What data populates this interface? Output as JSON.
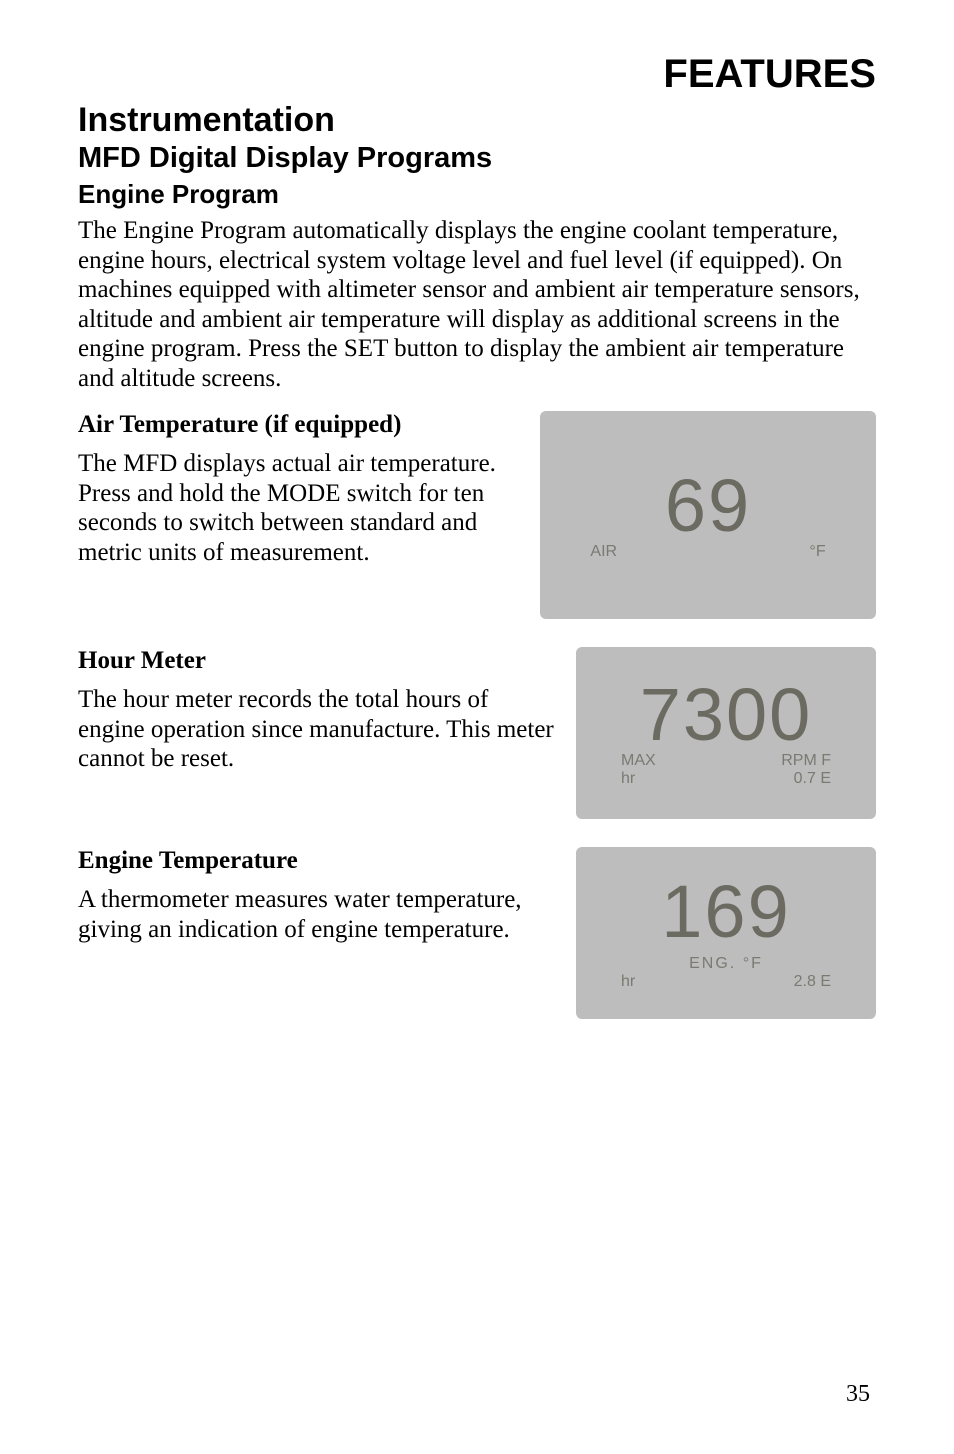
{
  "header": {
    "title": "FEATURES"
  },
  "h1": "Instrumentation",
  "h2": "MFD Digital Display Programs",
  "h3": "Engine Program",
  "intro": "The Engine Program automatically displays the engine coolant temperature, engine hours, electrical system voltage level and fuel level (if equipped). On machines equipped with altimeter sensor and ambient air temperature sensors, altitude and ambient air temperature will display as additional screens in the engine program. Press the SET button to display the ambient air temperature and altitude screens.",
  "sections": {
    "airTemp": {
      "title": "Air Temperature (if equipped)",
      "body": "The MFD displays actual air temperature. Press and hold the MODE switch for ten seconds to switch between standard and metric units of measurement.",
      "display": {
        "main": "69",
        "labelLeft": "AIR",
        "labelRight": "°F"
      }
    },
    "hourMeter": {
      "title": "Hour Meter",
      "body": "The hour meter records the total hours of engine operation since manufacture. This meter cannot be reset.",
      "display": {
        "main": "7300",
        "labelLeft": "MAX",
        "labelRight": "RPM F",
        "bottomLeft": "hr",
        "bottomRight": "0.7 E"
      }
    },
    "engineTemp": {
      "title": "Engine Temperature",
      "body": "A thermometer measures water temperature, giving an indication of engine temperature.",
      "display": {
        "main": "169",
        "labelCenter": "ENG. °F",
        "bottomLeft": "hr",
        "bottomRight": "2.8 E"
      }
    }
  },
  "pageNumber": "35",
  "style": {
    "bg": "#ffffff",
    "text": "#000000",
    "placeholderBg": "#bdbdbd",
    "lcdText": "#6b6b62"
  }
}
